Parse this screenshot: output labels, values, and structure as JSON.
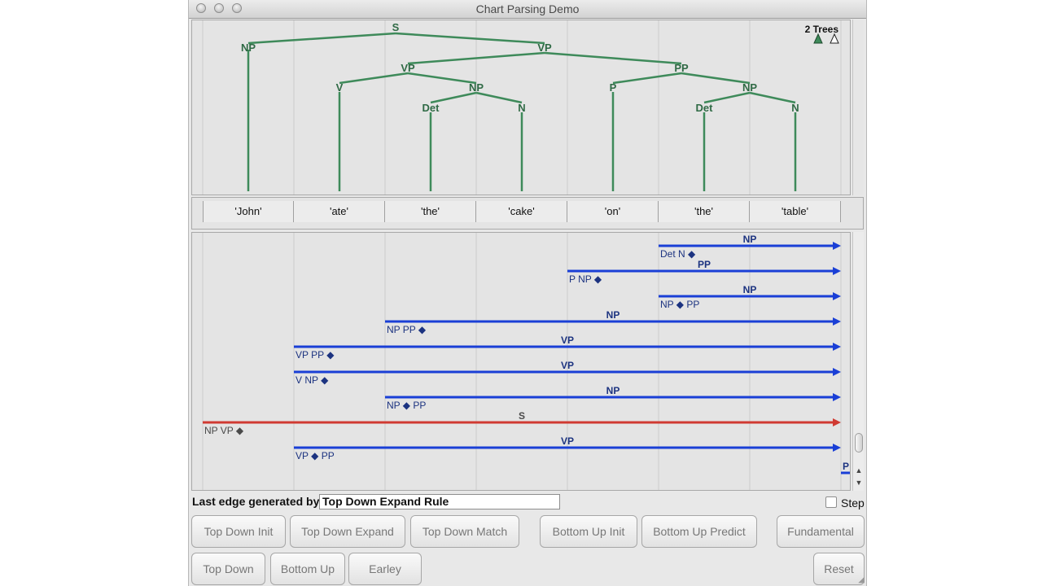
{
  "window": {
    "title": "Chart Parsing Demo"
  },
  "tree_view": {
    "tree_count": "2 Trees",
    "nodes": {
      "s": "S",
      "np_john": "NP",
      "vp_top": "VP",
      "vp_mid": "VP",
      "pp_mid": "PP",
      "v": "V",
      "np_cake": "NP",
      "det_cake": "Det",
      "n_cake": "N",
      "p": "P",
      "np_table": "NP",
      "det_table": "Det",
      "n_table": "N"
    }
  },
  "tokens": [
    "'John'",
    "'ate'",
    "'the'",
    "'cake'",
    "'on'",
    "'the'",
    "'table'"
  ],
  "chart_edges": [
    {
      "label": "NP",
      "rhs": "Det N ◆",
      "start": 5,
      "color": "#1a3fd6"
    },
    {
      "label": "PP",
      "rhs": "P NP ◆",
      "start": 4,
      "color": "#1a3fd6"
    },
    {
      "label": "NP",
      "rhs": "NP ◆ PP",
      "start": 5,
      "color": "#1a3fd6"
    },
    {
      "label": "NP",
      "rhs": "NP PP ◆",
      "start": 2,
      "color": "#1a3fd6"
    },
    {
      "label": "VP",
      "rhs": "VP PP ◆",
      "start": 1,
      "color": "#1a3fd6"
    },
    {
      "label": "VP",
      "rhs": "V NP ◆",
      "start": 1,
      "color": "#1a3fd6"
    },
    {
      "label": "NP",
      "rhs": "NP ◆ PP",
      "start": 2,
      "color": "#1a3fd6"
    },
    {
      "label": "S",
      "rhs": "NP VP ◆",
      "start": 0,
      "color": "#d03a32"
    },
    {
      "label": "VP",
      "rhs": "VP ◆ PP",
      "start": 1,
      "color": "#1a3fd6"
    }
  ],
  "partial_edge_label": "P",
  "status": {
    "label": "Last edge generated by:",
    "value": "Top Down Expand Rule",
    "step_label": "Step"
  },
  "buttons": {
    "top_down_init": "Top Down Init",
    "top_down_expand": "Top Down Expand",
    "top_down_match": "Top Down Match",
    "bottom_up_init": "Bottom Up Init",
    "bottom_up_predict": "Bottom Up Predict",
    "fundamental": "Fundamental",
    "top_down": "Top Down",
    "bottom_up": "Bottom Up",
    "earley": "Earley",
    "reset": "Reset"
  },
  "colors": {
    "tree": "#3e8a5a",
    "edge_blue": "#1a3fd6",
    "edge_red": "#d03a32",
    "label_blue": "#1c3380"
  }
}
